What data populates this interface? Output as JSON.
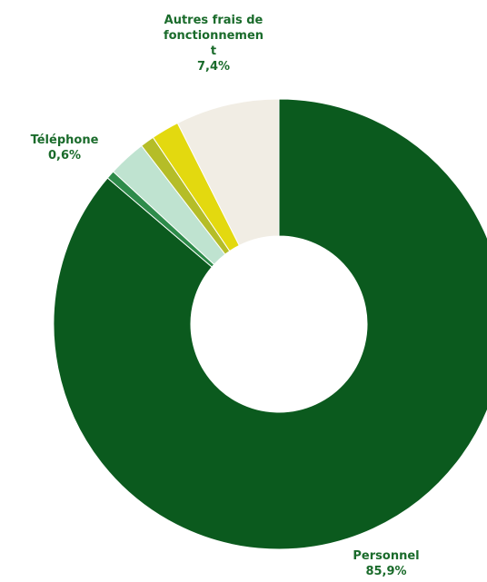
{
  "chart_data": {
    "type": "pie",
    "style": "donut",
    "slices": [
      {
        "label": "Personnel",
        "value": 85.9,
        "value_label": "85,9%",
        "color": "#0b5a1e"
      },
      {
        "label": "Téléphone",
        "value": 0.6,
        "value_label": "0,6%",
        "color": "#2e8b4a"
      },
      {
        "label": "",
        "value": 2.7,
        "color": "#bfe3d0"
      },
      {
        "label": "",
        "value": 1.0,
        "color": "#b5bd28"
      },
      {
        "label": "",
        "value": 2.0,
        "color": "#e3d90f"
      },
      {
        "label": "Autres frais de fonctionnement",
        "label_lines": [
          "Autres frais de",
          "fonctionnemen",
          "t"
        ],
        "value": 7.4,
        "value_label": "7,4%",
        "color": "#f1ede4"
      }
    ]
  }
}
